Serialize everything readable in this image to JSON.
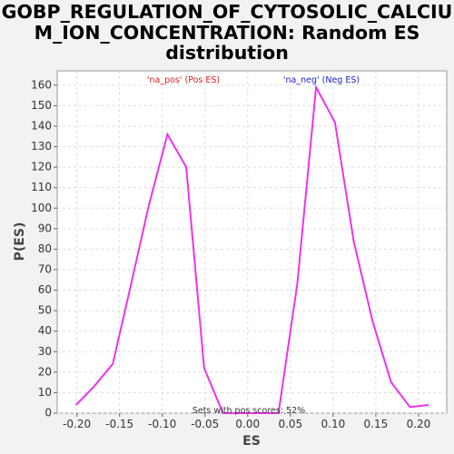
{
  "chart_data": {
    "type": "line",
    "title": "GOBP_REGULATION_OF_CYTOSOLIC_CALCIU\nM_ION_CONCENTRATION: Random ES\ndistribution",
    "xlabel": "ES",
    "ylabel": "P(ES)",
    "xlim": [
      -0.223,
      0.233
    ],
    "ylim": [
      0,
      167
    ],
    "x_ticks": [
      "-0.20",
      "-0.15",
      "-0.10",
      "-0.05",
      "0.00",
      "0.05",
      "0.10",
      "0.15",
      "0.20"
    ],
    "y_ticks": [
      "0",
      "10",
      "20",
      "30",
      "40",
      "50",
      "60",
      "70",
      "80",
      "90",
      "100",
      "110",
      "120",
      "130",
      "140",
      "150",
      "160"
    ],
    "grid": true,
    "series": [
      {
        "color": "#ee33ee",
        "x": [
          -0.201,
          -0.18,
          -0.158,
          -0.137,
          -0.116,
          -0.094,
          -0.072,
          -0.051,
          -0.029,
          0.036,
          0.058,
          0.08,
          0.102,
          0.124,
          0.146,
          0.168,
          0.19,
          0.212
        ],
        "y": [
          4,
          13,
          24,
          62,
          101,
          136,
          120,
          22,
          0,
          0,
          63,
          159,
          142,
          84,
          45,
          15,
          3,
          4
        ]
      }
    ],
    "annotations": {
      "pos_label": "'na_pos' (Pos ES)",
      "neg_label": "'na_neg' (Neg ES)",
      "footer": "Sets with pos scores: 52%"
    },
    "colors": {
      "pos": "#dd2222",
      "neg": "#2222cc",
      "line": "#ee33ee"
    }
  }
}
